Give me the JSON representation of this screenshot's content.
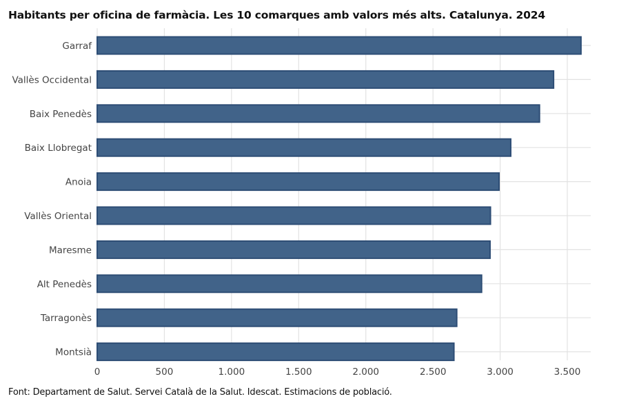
{
  "title": "Habitants per oficina de farmàcia. Les 10 comarques amb valors més alts. Catalunya. 2024",
  "source": "Font: Departament de Salut. Servei Català de la Salut. Idescat. Estimacions de població.",
  "colors": {
    "bar_fill": "#416389",
    "bar_stroke": "#2d4d75",
    "grid": "#e2e2e2",
    "text": "#444444"
  },
  "chart_data": {
    "type": "bar",
    "orientation": "horizontal",
    "title": "Habitants per oficina de farmàcia. Les 10 comarques amb valors més alts. Catalunya. 2024",
    "xlabel": "",
    "ylabel": "",
    "xlim": [
      0,
      3600
    ],
    "grid": true,
    "categories": [
      "Garraf",
      "Vallès Occidental",
      "Baix Penedès",
      "Baix Llobregat",
      "Anoia",
      "Vallès Oriental",
      "Maresme",
      "Alt Penedès",
      "Tarragonès",
      "Montsià"
    ],
    "values": [
      3602,
      3398,
      3293,
      3079,
      2992,
      2928,
      2925,
      2862,
      2677,
      2656
    ],
    "ticks": [
      0,
      500,
      1000,
      1500,
      2000,
      2500,
      3000,
      3500
    ],
    "tick_labels": [
      "0",
      "500",
      "1.000",
      "1.500",
      "2.000",
      "2.500",
      "3.000",
      "3.500"
    ]
  }
}
